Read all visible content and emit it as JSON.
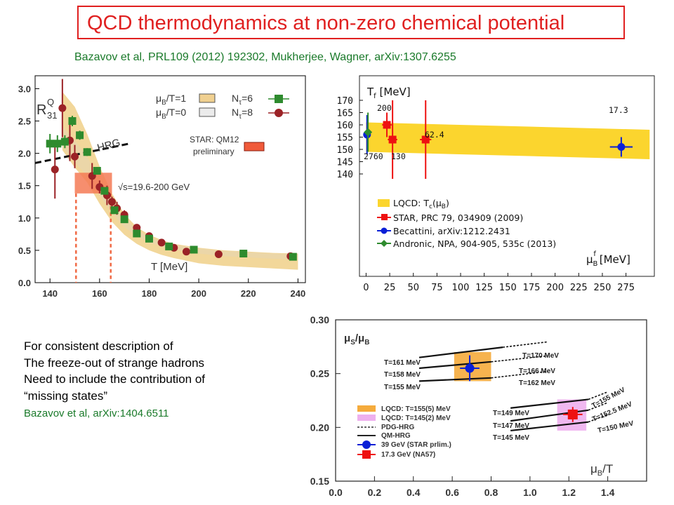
{
  "slide": {
    "title": "QCD thermodynamics at non-zero chemical potential",
    "references": "Bazavov et al, PRL109 (2012) 192302, Mukherjee, Wagner, arXiv:1307.6255",
    "note_lines": [
      "For consistent description of",
      "The freeze-out of strange hadrons",
      "Need to include the contribution of",
      "“missing states”"
    ],
    "note_ref": "Bazavov et al, arXiv:1404.6511"
  },
  "colors": {
    "title_red": "#e02020",
    "ref_green": "#1a7a2a",
    "band_gold": "#f2d79a",
    "band_yellow": "#fbd52e",
    "green": "#2e8b2e",
    "red": "#9b2226",
    "blue": "#0a1fd6",
    "bright_red": "#ee1111",
    "orange": "#f5ab3c",
    "pink": "#eeb0ee"
  },
  "chart_data": [
    {
      "type": "scatter",
      "xlabel": "T [MeV]",
      "ylabel": "R31Q",
      "ylabel_parts": {
        "main": "R",
        "sup": "Q",
        "sub": "31"
      },
      "xlim": [
        134,
        243
      ],
      "ylim": [
        0.0,
        3.2
      ],
      "xticks": [
        "140",
        "160",
        "180",
        "200",
        "220",
        "240"
      ],
      "yticks": [
        "0.0",
        "0.5",
        "1.0",
        "1.5",
        "2.0",
        "2.5",
        "3.0"
      ],
      "legend": {
        "band1": {
          "label": "μB/T=1",
          "main": "μ",
          "sub": "B",
          "rest": "/T=1"
        },
        "band0": {
          "label": "μB/T=0",
          "main": "μ",
          "sub": "B",
          "rest": "/T=0"
        },
        "nt6": {
          "label": "Nτ=6",
          "main": "N",
          "sub": "τ",
          "rest": "=6"
        },
        "nt8": {
          "label": "Nτ=8",
          "main": "N",
          "sub": "τ",
          "rest": "=8"
        },
        "star": [
          "STAR: QM12",
          "preliminary"
        ]
      },
      "hrg_label": "HRG",
      "energy_label": "√s=19.6-200 GeV",
      "hrg_line": {
        "x": [
          134,
          172
        ],
        "y": [
          1.85,
          2.15
        ]
      },
      "band": {
        "x": [
          145,
          150,
          155,
          160,
          165,
          170,
          175,
          180,
          185,
          190,
          200,
          210,
          220,
          230,
          240
        ],
        "low": [
          2.05,
          1.78,
          1.55,
          1.22,
          0.94,
          0.74,
          0.6,
          0.5,
          0.43,
          0.38,
          0.3,
          0.26,
          0.24,
          0.22,
          0.2
        ],
        "high": [
          2.95,
          2.72,
          2.3,
          1.8,
          1.38,
          1.06,
          0.86,
          0.74,
          0.66,
          0.6,
          0.54,
          0.5,
          0.48,
          0.46,
          0.45
        ],
        "inner_low": [
          2.1,
          1.86,
          1.65,
          1.35,
          1.08,
          0.86,
          0.72,
          0.62,
          0.56,
          0.51,
          0.45,
          0.41,
          0.39,
          0.37,
          0.36
        ],
        "inner_high": [
          2.42,
          2.2,
          1.95,
          1.58,
          1.25,
          1.0,
          0.82,
          0.71,
          0.64,
          0.59,
          0.53,
          0.49,
          0.47,
          0.45,
          0.44
        ]
      },
      "star_box": {
        "T": [
          150,
          165
        ],
        "R": [
          1.38,
          1.7
        ]
      },
      "star_lines": [
        150.5,
        164.5
      ],
      "series": [
        {
          "name": "Nτ=6",
          "x": [
            140,
            143,
            146,
            149,
            152,
            155,
            159,
            162,
            166,
            170,
            175,
            180,
            188,
            198,
            218,
            238
          ],
          "y": [
            2.15,
            2.15,
            2.18,
            2.5,
            2.28,
            2.02,
            1.73,
            1.42,
            1.12,
            0.98,
            0.76,
            0.68,
            0.56,
            0.51,
            0.45,
            0.4
          ],
          "err": [
            0.15,
            0.13,
            0.1,
            0.08,
            0.07,
            0.06,
            0.06,
            0.05,
            0.05,
            0.04,
            0.03,
            0.03,
            0.03,
            0.03,
            0.02,
            0.02
          ]
        },
        {
          "name": "Nτ=8",
          "x": [
            142,
            145,
            148,
            150,
            157,
            160,
            163,
            165,
            167,
            170,
            175,
            180,
            185,
            190,
            195,
            208,
            237
          ],
          "y": [
            1.75,
            2.7,
            2.2,
            1.95,
            1.65,
            1.48,
            1.35,
            1.25,
            1.15,
            1.05,
            0.85,
            0.72,
            0.62,
            0.54,
            0.48,
            0.44,
            0.41
          ],
          "err": [
            0.45,
            0.45,
            0.32,
            0.18,
            0.2,
            0.1,
            0.15,
            0.08,
            0.1,
            0.07,
            0.05,
            0.04,
            0.04,
            0.03,
            0.03,
            0.03,
            0.03
          ]
        }
      ]
    },
    {
      "type": "scatter",
      "xlabel": "μBf [MeV]",
      "xlabel_parts": {
        "main": "μ",
        "sub": "B",
        "sup": "f",
        "rest": " [MeV]"
      },
      "ylabel": "Tf [MeV]",
      "ylabel_parts": {
        "main": "T",
        "sub": "f",
        "rest": " [MeV]"
      },
      "xlim": [
        -7,
        305
      ],
      "xticks": [
        "0",
        "25",
        "50",
        "75",
        "100",
        "125",
        "150",
        "175",
        "200",
        "225",
        "250",
        "275"
      ],
      "yticks": [
        "140",
        "145",
        "150",
        "155",
        "160",
        "165",
        "170"
      ],
      "yband": {
        "x": [
          0,
          300
        ],
        "top": [
          161,
          158
        ],
        "bottom": [
          149,
          146
        ]
      },
      "band_label": "LQCD: Tc(μB)",
      "band_label_parts": {
        "pre": "LQCD: T",
        "sub": "c",
        "mid": "(μ",
        "sub2": "B",
        "post": ")"
      },
      "legend": [
        "STAR, PRC 79, 034909 (2009)",
        "Becattini, arXiv:1212.2431",
        "Andronic, NPA, 904-905, 535c (2013)"
      ],
      "energy_labels": [
        "2760",
        "200",
        "130",
        "62.4",
        "17.3"
      ],
      "series": [
        {
          "name": "STAR, PRC 79, 034909 (2009)",
          "x": [
            22,
            28,
            63
          ],
          "y": [
            160,
            154,
            154
          ],
          "xerr": [
            5,
            5,
            6
          ],
          "yerr": [
            5,
            16,
            16
          ]
        },
        {
          "name": "Becattini, arXiv:1212.2431",
          "x": [
            1,
            270
          ],
          "y": [
            156,
            151
          ],
          "xerr": [
            3,
            12
          ],
          "yerr": [
            8,
            4
          ]
        },
        {
          "name": "Andronic, NPA, 904-905, 535c (2013)",
          "x": [
            2
          ],
          "y": [
            157
          ],
          "xerr": [
            1
          ],
          "yerr": [
            8
          ]
        }
      ]
    },
    {
      "type": "line",
      "xlabel": "μB/T",
      "xlabel_parts": {
        "main": "μ",
        "sub": "B",
        "rest": "/T"
      },
      "ylabel": "μS/μB",
      "ylabel_parts": {
        "main": "μ",
        "sub": "S",
        "mid": "/μ",
        "sub2": "B"
      },
      "xlim": [
        0.0,
        1.6
      ],
      "ylim": [
        0.15,
        0.3
      ],
      "xticks": [
        "0.0",
        "0.2",
        "0.4",
        "0.6",
        "0.8",
        "1.0",
        "1.2",
        "1.4"
      ],
      "yticks": [
        "0.15",
        "0.20",
        "0.25",
        "0.30"
      ],
      "line_labels": [
        "T=161 MeV",
        "T=158 MeV",
        "T=155 MeV",
        "T=170 MeV",
        "T=166 MeV",
        "T=162 MeV",
        "T=149 MeV",
        "T=147 MeV",
        "T=145 MeV",
        "T=155 MeV",
        "T=152.5 MeV",
        "T=150 MeV"
      ],
      "lines": [
        {
          "kind": "solid",
          "x": [
            0.43,
            0.86
          ],
          "y": [
            0.265,
            0.2745
          ]
        },
        {
          "kind": "dashed",
          "x": [
            0.86,
            1.09
          ],
          "y": [
            0.2745,
            0.2795
          ]
        },
        {
          "kind": "solid",
          "x": [
            0.43,
            0.8
          ],
          "y": [
            0.255,
            0.261
          ]
        },
        {
          "kind": "dashed",
          "x": [
            0.8,
            1.09
          ],
          "y": [
            0.261,
            0.2665
          ]
        },
        {
          "kind": "solid",
          "x": [
            0.43,
            0.8
          ],
          "y": [
            0.243,
            0.246
          ]
        },
        {
          "kind": "dashed",
          "x": [
            0.8,
            1.09
          ],
          "y": [
            0.246,
            0.252
          ]
        },
        {
          "kind": "solid",
          "x": [
            0.9,
            1.3
          ],
          "y": [
            0.218,
            0.226
          ]
        },
        {
          "kind": "dashed",
          "x": [
            1.3,
            1.4
          ],
          "y": [
            0.226,
            0.233
          ]
        },
        {
          "kind": "solid",
          "x": [
            0.9,
            1.3
          ],
          "y": [
            0.206,
            0.216
          ]
        },
        {
          "kind": "dashed",
          "x": [
            1.3,
            1.4
          ],
          "y": [
            0.216,
            0.223
          ]
        },
        {
          "kind": "solid",
          "x": [
            0.9,
            1.3
          ],
          "y": [
            0.197,
            0.205
          ]
        },
        {
          "kind": "dashed",
          "x": [
            1.3,
            1.4
          ],
          "y": [
            0.205,
            0.212
          ]
        }
      ],
      "boxes": [
        {
          "name": "LQCD: T=155(5) MeV",
          "x": [
            0.61,
            0.8
          ],
          "y": [
            0.243,
            0.27
          ]
        },
        {
          "name": "LQCD: T=145(2) MeV",
          "x": [
            1.14,
            1.29
          ],
          "y": [
            0.197,
            0.226
          ]
        }
      ],
      "points": [
        {
          "name": "39 GeV (STAR prlim.)",
          "x": 0.69,
          "y": 0.255,
          "xerr": 0.05,
          "yerr": 0.012
        },
        {
          "name": "17.3 GeV (NA57)",
          "x": 1.22,
          "y": 0.212,
          "xerr": 0.05,
          "yerr": 0.007
        }
      ],
      "legend": [
        "LQCD: T=155(5) MeV",
        "LQCD: T=145(2) MeV",
        "PDG-HRG",
        "QM-HRG",
        "39 GeV (STAR prlim.)",
        "17.3 GeV (NA57)"
      ]
    }
  ]
}
